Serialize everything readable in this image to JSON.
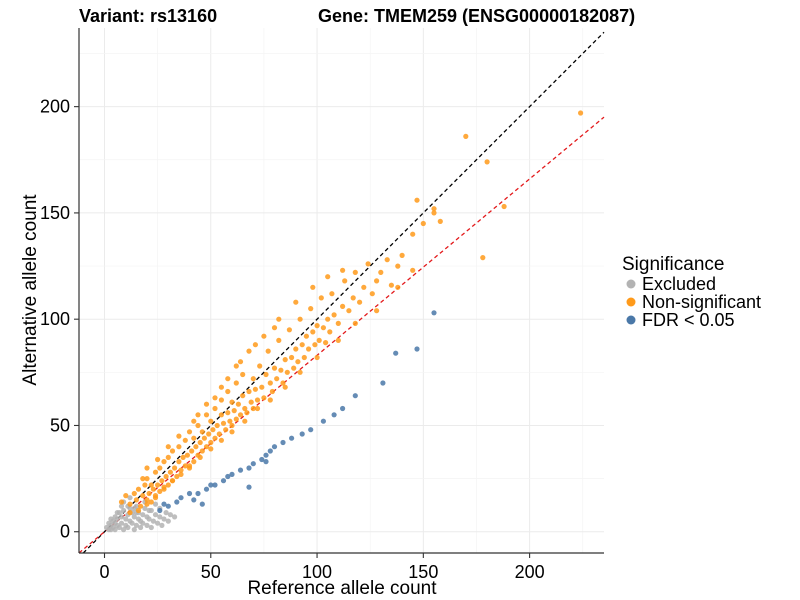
{
  "chart_data": {
    "type": "scatter",
    "title_left": "Variant: rs13160",
    "title_right": "Gene: TMEM259 (ENSG00000182087)",
    "xlabel": "Reference allele count",
    "ylabel": "Alternative allele count",
    "xlim": [
      -12,
      235
    ],
    "ylim": [
      -10,
      237
    ],
    "xticks": [
      0,
      50,
      100,
      150,
      200
    ],
    "yticks": [
      0,
      50,
      100,
      150,
      200
    ],
    "legend": {
      "title": "Significance",
      "position": "right",
      "entries": [
        {
          "label": "Excluded",
          "color": "#b3b3b3"
        },
        {
          "label": "Non-significant",
          "color": "#ff9a1a"
        },
        {
          "label": "FDR < 0.05",
          "color": "#4a78a8"
        }
      ]
    },
    "reference_lines": [
      {
        "name": "identity",
        "slope": 1.0,
        "intercept": 0,
        "color": "#000000",
        "dash": "dashed"
      },
      {
        "name": "fit",
        "slope": 0.83,
        "intercept": 0,
        "color": "#e31a1c",
        "dash": "dashed"
      }
    ],
    "series": [
      {
        "name": "Excluded",
        "color": "#b3b3b3",
        "points": [
          [
            1,
            2
          ],
          [
            2,
            1
          ],
          [
            2,
            4
          ],
          [
            3,
            3
          ],
          [
            3,
            6
          ],
          [
            4,
            2
          ],
          [
            4,
            5
          ],
          [
            5,
            1
          ],
          [
            5,
            7
          ],
          [
            6,
            3
          ],
          [
            6,
            6
          ],
          [
            7,
            2
          ],
          [
            7,
            9
          ],
          [
            8,
            4
          ],
          [
            8,
            7
          ],
          [
            9,
            1
          ],
          [
            9,
            10
          ],
          [
            10,
            3
          ],
          [
            10,
            6
          ],
          [
            11,
            8
          ],
          [
            11,
            2
          ],
          [
            12,
            5
          ],
          [
            12,
            11
          ],
          [
            13,
            4
          ],
          [
            13,
            9
          ],
          [
            14,
            1
          ],
          [
            14,
            7
          ],
          [
            15,
            3
          ],
          [
            15,
            12
          ],
          [
            16,
            6
          ],
          [
            16,
            9
          ],
          [
            17,
            2
          ],
          [
            17,
            5
          ],
          [
            18,
            8
          ],
          [
            18,
            4
          ],
          [
            19,
            11
          ],
          [
            20,
            3
          ],
          [
            20,
            7
          ],
          [
            21,
            6
          ],
          [
            22,
            10
          ],
          [
            22,
            2
          ],
          [
            23,
            5
          ],
          [
            24,
            8
          ],
          [
            24,
            13
          ],
          [
            25,
            4
          ],
          [
            26,
            7
          ],
          [
            27,
            3
          ],
          [
            28,
            6
          ],
          [
            29,
            9
          ],
          [
            30,
            5
          ],
          [
            31,
            8
          ],
          [
            33,
            7
          ],
          [
            12,
            16
          ],
          [
            9,
            14
          ],
          [
            6,
            9
          ],
          [
            3,
            1
          ],
          [
            8,
            12
          ],
          [
            15,
            9
          ],
          [
            19,
            14
          ],
          [
            21,
            10
          ],
          [
            26,
            11
          ],
          [
            5,
            4
          ],
          [
            11,
            12
          ],
          [
            14,
            11
          ]
        ]
      },
      {
        "name": "Non-significant",
        "color": "#ff9a1a",
        "points": [
          [
            8,
            14
          ],
          [
            10,
            17
          ],
          [
            12,
            13
          ],
          [
            14,
            18
          ],
          [
            15,
            15
          ],
          [
            16,
            20
          ],
          [
            17,
            12
          ],
          [
            18,
            17
          ],
          [
            19,
            22
          ],
          [
            20,
            15
          ],
          [
            20,
            25
          ],
          [
            21,
            18
          ],
          [
            22,
            14
          ],
          [
            22,
            22
          ],
          [
            23,
            20
          ],
          [
            24,
            17
          ],
          [
            24,
            28
          ],
          [
            25,
            22
          ],
          [
            26,
            19
          ],
          [
            26,
            30
          ],
          [
            27,
            24
          ],
          [
            28,
            21
          ],
          [
            28,
            33
          ],
          [
            29,
            26
          ],
          [
            30,
            22
          ],
          [
            30,
            35
          ],
          [
            31,
            28
          ],
          [
            32,
            24
          ],
          [
            32,
            38
          ],
          [
            33,
            30
          ],
          [
            34,
            26
          ],
          [
            35,
            33
          ],
          [
            35,
            40
          ],
          [
            36,
            29
          ],
          [
            37,
            35
          ],
          [
            38,
            31
          ],
          [
            38,
            43
          ],
          [
            39,
            36
          ],
          [
            40,
            30
          ],
          [
            40,
            47
          ],
          [
            41,
            38
          ],
          [
            42,
            33
          ],
          [
            42,
            44
          ],
          [
            43,
            40
          ],
          [
            44,
            36
          ],
          [
            44,
            50
          ],
          [
            45,
            42
          ],
          [
            46,
            38
          ],
          [
            46,
            47
          ],
          [
            47,
            44
          ],
          [
            48,
            40
          ],
          [
            48,
            55
          ],
          [
            49,
            46
          ],
          [
            50,
            42
          ],
          [
            50,
            52
          ],
          [
            51,
            48
          ],
          [
            52,
            44
          ],
          [
            52,
            58
          ],
          [
            53,
            50
          ],
          [
            54,
            46
          ],
          [
            55,
            55
          ],
          [
            55,
            62
          ],
          [
            56,
            51
          ],
          [
            57,
            48
          ],
          [
            58,
            56
          ],
          [
            58,
            66
          ],
          [
            59,
            52
          ],
          [
            60,
            50
          ],
          [
            60,
            61
          ],
          [
            61,
            57
          ],
          [
            62,
            53
          ],
          [
            62,
            70
          ],
          [
            63,
            60
          ],
          [
            64,
            55
          ],
          [
            65,
            64
          ],
          [
            65,
            74
          ],
          [
            66,
            58
          ],
          [
            67,
            56
          ],
          [
            68,
            66
          ],
          [
            69,
            61
          ],
          [
            70,
            58
          ],
          [
            70,
            72
          ],
          [
            71,
            67
          ],
          [
            72,
            62
          ],
          [
            73,
            78
          ],
          [
            74,
            68
          ],
          [
            75,
            63
          ],
          [
            76,
            74
          ],
          [
            77,
            85
          ],
          [
            78,
            70
          ],
          [
            79,
            66
          ],
          [
            80,
            77
          ],
          [
            81,
            72
          ],
          [
            82,
            90
          ],
          [
            83,
            76
          ],
          [
            84,
            70
          ],
          [
            85,
            81
          ],
          [
            86,
            75
          ],
          [
            87,
            95
          ],
          [
            88,
            82
          ],
          [
            89,
            77
          ],
          [
            90,
            86
          ],
          [
            91,
            80
          ],
          [
            92,
            100
          ],
          [
            93,
            88
          ],
          [
            94,
            82
          ],
          [
            95,
            92
          ],
          [
            96,
            86
          ],
          [
            97,
            105
          ],
          [
            98,
            94
          ],
          [
            99,
            88
          ],
          [
            100,
            97
          ],
          [
            101,
            90
          ],
          [
            102,
            110
          ],
          [
            103,
            96
          ],
          [
            104,
            89
          ],
          [
            105,
            100
          ],
          [
            106,
            94
          ],
          [
            107,
            112
          ],
          [
            108,
            102
          ],
          [
            110,
            98
          ],
          [
            112,
            106
          ],
          [
            113,
            118
          ],
          [
            115,
            104
          ],
          [
            117,
            110
          ],
          [
            118,
            122
          ],
          [
            120,
            108
          ],
          [
            122,
            115
          ],
          [
            124,
            126
          ],
          [
            126,
            112
          ],
          [
            128,
            118
          ],
          [
            130,
            122
          ],
          [
            133,
            128
          ],
          [
            135,
            116
          ],
          [
            138,
            125
          ],
          [
            140,
            130
          ],
          [
            145,
            140
          ],
          [
            147,
            156
          ],
          [
            150,
            145
          ],
          [
            155,
            150
          ],
          [
            158,
            146
          ],
          [
            170,
            186
          ],
          [
            180,
            174
          ],
          [
            178,
            129
          ],
          [
            188,
            153
          ],
          [
            224,
            197
          ],
          [
            155,
            152
          ],
          [
            145,
            123
          ],
          [
            138,
            115
          ],
          [
            128,
            104
          ],
          [
            118,
            98
          ],
          [
            110,
            90
          ],
          [
            100,
            82
          ],
          [
            92,
            75
          ],
          [
            85,
            68
          ],
          [
            78,
            62
          ],
          [
            72,
            58
          ],
          [
            66,
            52
          ],
          [
            60,
            47
          ],
          [
            55,
            43
          ],
          [
            50,
            39
          ],
          [
            45,
            35
          ],
          [
            40,
            31
          ],
          [
            36,
            27
          ],
          [
            32,
            24
          ],
          [
            28,
            20
          ],
          [
            24,
            16
          ],
          [
            20,
            13
          ],
          [
            16,
            10
          ],
          [
            12,
            9
          ],
          [
            30,
            40
          ],
          [
            35,
            45
          ],
          [
            42,
            52
          ],
          [
            48,
            60
          ],
          [
            55,
            68
          ],
          [
            62,
            78
          ],
          [
            68,
            85
          ],
          [
            75,
            92
          ],
          [
            82,
            100
          ],
          [
            90,
            108
          ],
          [
            98,
            115
          ],
          [
            105,
            120
          ],
          [
            112,
            123
          ],
          [
            20,
            30
          ],
          [
            25,
            34
          ],
          [
            18,
            25
          ],
          [
            44,
            55
          ],
          [
            52,
            63
          ],
          [
            58,
            72
          ],
          [
            64,
            80
          ],
          [
            71,
            88
          ],
          [
            80,
            96
          ]
        ]
      },
      {
        "name": "FDR < 0.05",
        "color": "#4a78a8",
        "points": [
          [
            155,
            103
          ],
          [
            147,
            86
          ],
          [
            131,
            70
          ],
          [
            137,
            84
          ],
          [
            118,
            64
          ],
          [
            112,
            58
          ],
          [
            108,
            55
          ],
          [
            103,
            52
          ],
          [
            97,
            48
          ],
          [
            93,
            46
          ],
          [
            88,
            44
          ],
          [
            84,
            42
          ],
          [
            80,
            40
          ],
          [
            78,
            38
          ],
          [
            76,
            36
          ],
          [
            74,
            34
          ],
          [
            70,
            32
          ],
          [
            68,
            30
          ],
          [
            64,
            29
          ],
          [
            60,
            27
          ],
          [
            58,
            26
          ],
          [
            56,
            24
          ],
          [
            52,
            22
          ],
          [
            48,
            20
          ],
          [
            44,
            18
          ],
          [
            42,
            15
          ],
          [
            40,
            18
          ],
          [
            36,
            16
          ],
          [
            34,
            14
          ],
          [
            30,
            12
          ],
          [
            28,
            13
          ],
          [
            26,
            10
          ],
          [
            76,
            33
          ],
          [
            68,
            21
          ],
          [
            50,
            22
          ],
          [
            46,
            13
          ]
        ]
      }
    ]
  }
}
